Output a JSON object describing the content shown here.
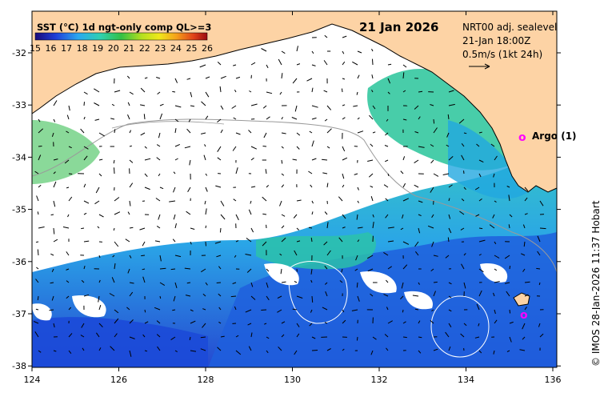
{
  "map": {
    "date": "21 Jan 2026",
    "colorbar": {
      "title": "SST (°C) 1d ngt-only comp QL>=3",
      "ticks": [
        "15",
        "16",
        "17",
        "18",
        "19",
        "20",
        "21",
        "22",
        "23",
        "24",
        "25",
        "26"
      ]
    },
    "vectors": {
      "model": "NRT00 adj. sealevel",
      "time": "21-Jan 18:00Z",
      "scale": "0.5m/s (1kt 24h)"
    },
    "argo": {
      "label": "Argo (1)"
    },
    "credit": "© IMOS 28-Jan-2026 11:37 Hobart",
    "lon_ticks": [
      "124",
      "126",
      "128",
      "130",
      "132",
      "134",
      "136"
    ],
    "lat_ticks": [
      "-32",
      "-33",
      "-34",
      "-35",
      "-36",
      "-37",
      "-38"
    ],
    "colors": {
      "land": "#fdd3a5",
      "marker": "#ff00ff",
      "cloud": "#ffffff"
    }
  }
}
